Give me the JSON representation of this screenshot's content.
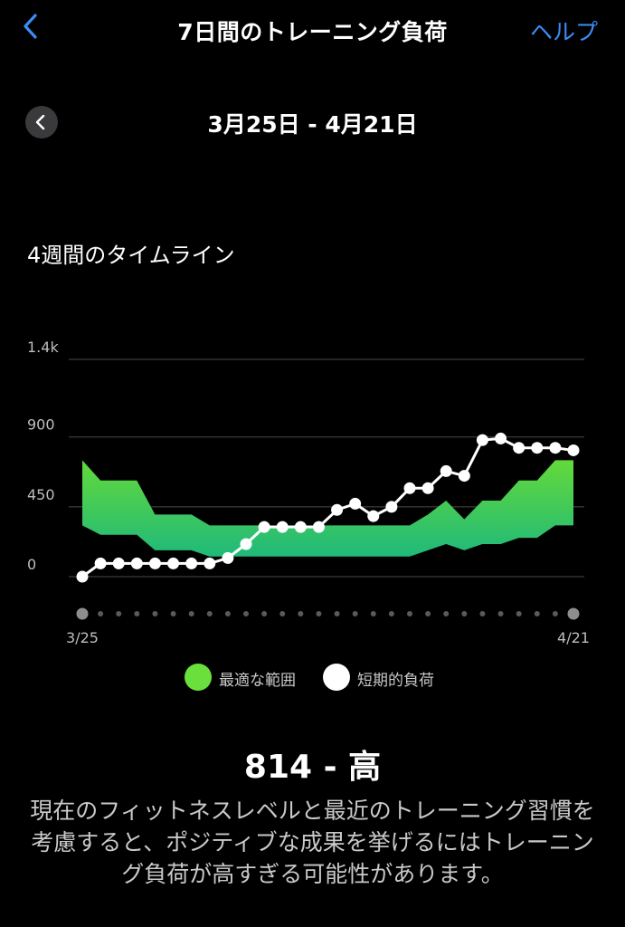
{
  "nav": {
    "title": "7日間のトレーニング負荷",
    "help": "ヘルプ"
  },
  "period": {
    "range": "3月25日 - 4月21日"
  },
  "timeline": {
    "title": "4週間のタイムライン"
  },
  "chart_data": {
    "type": "area",
    "title": "",
    "xlabel": "",
    "ylabel": "",
    "ylim": [
      0,
      1400
    ],
    "yticks": [
      "0",
      "450",
      "900",
      "1.4k"
    ],
    "ytick_values": [
      0,
      450,
      900,
      1400
    ],
    "grid": true,
    "x_start_label": "3/25",
    "x_end_label": "4/21",
    "x": [
      "3/25",
      "3/26",
      "3/27",
      "3/28",
      "3/29",
      "3/30",
      "3/31",
      "4/1",
      "4/2",
      "4/3",
      "4/4",
      "4/5",
      "4/6",
      "4/7",
      "4/8",
      "4/9",
      "4/10",
      "4/11",
      "4/12",
      "4/13",
      "4/14",
      "4/15",
      "4/16",
      "4/17",
      "4/18",
      "4/19",
      "4/20",
      "4/21"
    ],
    "optimal_range": {
      "name": "最適な範囲",
      "color": "#6ae03c",
      "lower": [
        330,
        270,
        270,
        270,
        170,
        170,
        170,
        130,
        130,
        130,
        130,
        130,
        130,
        130,
        130,
        130,
        130,
        130,
        130,
        170,
        210,
        170,
        210,
        210,
        250,
        250,
        330,
        330
      ],
      "upper": [
        750,
        620,
        620,
        620,
        400,
        400,
        400,
        330,
        330,
        330,
        330,
        330,
        330,
        330,
        330,
        330,
        330,
        330,
        330,
        400,
        490,
        370,
        490,
        490,
        620,
        620,
        750,
        750
      ]
    },
    "short_term_load": {
      "name": "短期的負荷",
      "color": "#ffffff",
      "values": [
        0,
        85,
        85,
        85,
        85,
        85,
        85,
        85,
        120,
        210,
        320,
        320,
        320,
        320,
        430,
        470,
        390,
        450,
        570,
        570,
        680,
        650,
        880,
        890,
        830,
        830,
        830,
        814
      ]
    }
  },
  "legend": {
    "optimal": "最適な範囲",
    "short_term": "短期的負荷"
  },
  "result": {
    "score": "814 - 高",
    "description": "現在のフィットネスレベルと最近のトレーニング習慣を考慮すると、ポジティブな成果を挙げるにはトレーニング負荷が高すぎる可能性があります。"
  }
}
